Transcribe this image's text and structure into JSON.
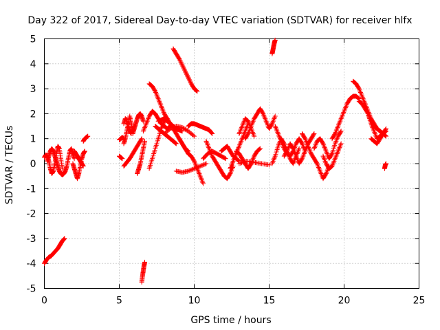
{
  "chart_data": {
    "type": "scatter",
    "title": "Day 322 of 2017, Sidereal Day-to-day VTEC variation (SDTVAR) for receiver hlfx",
    "xlabel": "GPS time / hours",
    "ylabel": "SDTVAR / TECUs",
    "xlim": [
      0,
      25
    ],
    "ylim": [
      -5,
      5
    ],
    "xticks": [
      "0",
      "5",
      "10",
      "15",
      "20",
      "25"
    ],
    "yticks": [
      "-5",
      "-4",
      "-3",
      "-2",
      "-1",
      "0",
      "1",
      "2",
      "3",
      "4",
      "5"
    ],
    "grid": true,
    "marker": "+",
    "color": "#ff0000",
    "segments": [
      {
        "x": [
          0.0,
          0.15,
          0.3,
          0.45,
          0.6,
          0.75,
          0.9,
          1.05,
          1.2,
          1.35
        ],
        "y": [
          -4.0,
          -3.85,
          -3.75,
          -3.7,
          -3.6,
          -3.5,
          -3.4,
          -3.25,
          -3.1,
          -3.0
        ]
      },
      {
        "x": [
          0.0,
          0.1,
          0.2,
          0.3,
          0.4,
          0.5,
          0.6,
          0.7,
          0.8,
          0.9,
          1.0,
          1.1,
          1.2
        ],
        "y": [
          0.25,
          0.35,
          0.3,
          0.1,
          -0.2,
          -0.4,
          -0.3,
          0.0,
          0.4,
          0.7,
          0.6,
          0.2,
          -0.2
        ]
      },
      {
        "x": [
          0.2,
          0.3,
          0.4,
          0.5,
          0.6,
          0.7,
          0.8,
          0.9,
          1.0
        ],
        "y": [
          0.1,
          0.3,
          0.5,
          0.6,
          0.5,
          0.3,
          0.1,
          -0.1,
          -0.3
        ]
      },
      {
        "x": [
          1.0,
          1.1,
          1.2,
          1.3,
          1.4,
          1.5,
          1.6,
          1.7,
          1.8,
          1.9,
          2.0
        ],
        "y": [
          -0.3,
          -0.4,
          -0.45,
          -0.4,
          -0.3,
          -0.1,
          0.2,
          0.5,
          0.6,
          0.4,
          0.2
        ]
      },
      {
        "x": [
          1.9,
          2.0,
          2.1,
          2.2,
          2.3,
          2.4,
          2.5,
          2.6,
          2.7
        ],
        "y": [
          0.0,
          -0.2,
          -0.4,
          -0.6,
          -0.4,
          -0.1,
          0.2,
          0.4,
          0.5
        ]
      },
      {
        "x": [
          2.0,
          2.1,
          2.2,
          2.3,
          2.4,
          2.5,
          2.6
        ],
        "y": [
          0.5,
          0.4,
          0.3,
          0.2,
          0.1,
          0.0,
          -0.1
        ]
      },
      {
        "x": [
          2.6,
          2.7,
          2.8,
          2.9
        ],
        "y": [
          0.9,
          1.0,
          1.05,
          1.1
        ]
      },
      {
        "x": [
          5.0,
          5.1,
          5.2
        ],
        "y": [
          0.3,
          0.25,
          0.2
        ]
      },
      {
        "x": [
          5.0,
          5.1,
          5.2,
          5.3
        ],
        "y": [
          0.95,
          1.0,
          1.05,
          1.0
        ]
      },
      {
        "x": [
          5.3,
          5.4,
          5.5,
          5.6,
          5.7,
          5.8,
          5.9,
          6.0
        ],
        "y": [
          0.8,
          1.0,
          1.3,
          1.6,
          1.9,
          1.6,
          1.3,
          1.5
        ]
      },
      {
        "x": [
          5.3,
          5.4,
          5.5,
          5.6,
          5.7,
          5.8
        ],
        "y": [
          1.6,
          1.8,
          1.75,
          1.5,
          1.3,
          1.2
        ]
      },
      {
        "x": [
          5.3,
          5.5,
          5.7,
          5.9,
          6.1,
          6.3,
          6.5
        ],
        "y": [
          -0.1,
          0.05,
          0.2,
          0.4,
          0.6,
          0.8,
          1.0
        ]
      },
      {
        "x": [
          5.9,
          6.0,
          6.1,
          6.2,
          6.3,
          6.4,
          6.5,
          6.6
        ],
        "y": [
          1.2,
          1.4,
          1.6,
          1.8,
          1.95,
          2.0,
          1.9,
          1.7
        ]
      },
      {
        "x": [
          6.2,
          6.3,
          6.4,
          6.5,
          6.6,
          6.7
        ],
        "y": [
          -0.4,
          -0.2,
          0.0,
          0.3,
          0.6,
          0.9
        ]
      },
      {
        "x": [
          6.5,
          6.55,
          6.6,
          6.65,
          6.7
        ],
        "y": [
          -4.75,
          -4.5,
          -4.3,
          -4.1,
          -3.95
        ]
      },
      {
        "x": [
          6.6,
          6.8,
          7.0,
          7.2,
          7.4,
          7.6,
          7.8,
          8.0,
          8.2,
          8.4
        ],
        "y": [
          1.3,
          1.6,
          1.9,
          2.1,
          2.0,
          1.8,
          1.6,
          1.5,
          1.4,
          1.5
        ]
      },
      {
        "x": [
          7.0,
          7.2,
          7.4,
          7.6,
          7.8,
          8.0,
          8.2,
          8.4,
          8.6,
          8.8,
          9.0,
          9.2
        ],
        "y": [
          3.2,
          3.1,
          2.9,
          2.6,
          2.3,
          2.0,
          1.8,
          1.6,
          1.5,
          1.4,
          1.35,
          1.3
        ]
      },
      {
        "x": [
          7.0,
          7.2,
          7.4,
          7.6,
          7.8,
          8.0,
          8.2
        ],
        "y": [
          -0.2,
          0.2,
          0.6,
          1.0,
          1.4,
          1.7,
          1.8
        ]
      },
      {
        "x": [
          7.4,
          7.6,
          7.8,
          8.0,
          8.2,
          8.4,
          8.6,
          8.8
        ],
        "y": [
          1.5,
          1.4,
          1.3,
          1.2,
          1.1,
          1.0,
          0.9,
          0.8
        ]
      },
      {
        "x": [
          7.6,
          7.8,
          8.0,
          8.2,
          8.4,
          8.6,
          8.8,
          9.0
        ],
        "y": [
          1.7,
          1.75,
          1.8,
          1.7,
          1.6,
          1.5,
          1.4,
          1.35
        ]
      },
      {
        "x": [
          8.6,
          8.8,
          9.0,
          9.2,
          9.4,
          9.6,
          9.8,
          10.0,
          10.2
        ],
        "y": [
          4.6,
          4.4,
          4.2,
          3.95,
          3.7,
          3.45,
          3.2,
          3.0,
          2.9
        ]
      },
      {
        "x": [
          8.6,
          8.8,
          9.0,
          9.2,
          9.4,
          9.6
        ],
        "y": [
          1.4,
          1.2,
          1.0,
          0.8,
          0.6,
          0.5
        ]
      },
      {
        "x": [
          8.0,
          8.4,
          8.8,
          9.2,
          9.6,
          10.0
        ],
        "y": [
          1.2,
          1.4,
          1.5,
          1.45,
          1.3,
          1.1
        ]
      },
      {
        "x": [
          9.0,
          9.2,
          9.4,
          9.6,
          9.8,
          10.0,
          10.2,
          10.4,
          10.6
        ],
        "y": [
          1.0,
          0.8,
          0.6,
          0.4,
          0.3,
          0.1,
          -0.2,
          -0.5,
          -0.8
        ]
      },
      {
        "x": [
          8.8,
          9.2,
          9.6,
          10.0,
          10.4,
          10.8
        ],
        "y": [
          -0.3,
          -0.35,
          -0.3,
          -0.2,
          -0.1,
          0.0
        ]
      },
      {
        "x": [
          9.6,
          9.8,
          10.0,
          10.2,
          10.4,
          10.6,
          10.8,
          11.0,
          11.2
        ],
        "y": [
          1.5,
          1.6,
          1.6,
          1.55,
          1.5,
          1.45,
          1.4,
          1.35,
          1.2
        ]
      },
      {
        "x": [
          10.8,
          11.0,
          11.2,
          11.4,
          11.6,
          11.8,
          12.0,
          12.2,
          12.4,
          12.6
        ],
        "y": [
          0.9,
          0.6,
          0.3,
          0.1,
          -0.1,
          -0.3,
          -0.5,
          -0.6,
          -0.4,
          -0.1
        ]
      },
      {
        "x": [
          10.6,
          10.9,
          11.2,
          11.5,
          11.8,
          12.1
        ],
        "y": [
          0.2,
          0.4,
          0.5,
          0.4,
          0.3,
          0.2
        ]
      },
      {
        "x": [
          11.8,
          12.0,
          12.2,
          12.4,
          12.6,
          12.8,
          13.0
        ],
        "y": [
          0.5,
          0.6,
          0.7,
          0.5,
          0.3,
          0.2,
          0.1
        ]
      },
      {
        "x": [
          12.4,
          12.6,
          12.8,
          13.0,
          13.2,
          13.4,
          13.6
        ],
        "y": [
          -0.2,
          0.1,
          0.4,
          0.7,
          1.0,
          1.3,
          1.6
        ]
      },
      {
        "x": [
          12.8,
          13.0,
          13.2,
          13.4,
          13.6,
          13.8,
          14.0,
          14.2,
          14.4
        ],
        "y": [
          0.5,
          0.4,
          0.2,
          0.0,
          -0.2,
          0.0,
          0.3,
          0.5,
          0.6
        ]
      },
      {
        "x": [
          13.0,
          13.2,
          13.4,
          13.6,
          13.8,
          14.0
        ],
        "y": [
          1.2,
          1.5,
          1.8,
          1.7,
          1.4,
          1.1
        ]
      },
      {
        "x": [
          13.4,
          13.6,
          13.8,
          14.0,
          14.2,
          14.4,
          14.6,
          14.8,
          15.0,
          15.2,
          15.4
        ],
        "y": [
          1.0,
          1.2,
          1.5,
          1.8,
          2.0,
          2.2,
          2.0,
          1.7,
          1.4,
          1.6,
          1.9
        ]
      },
      {
        "x": [
          13.0,
          13.5,
          14.0,
          14.5,
          15.0
        ],
        "y": [
          0.0,
          0.1,
          0.05,
          0.0,
          -0.05
        ]
      },
      {
        "x": [
          15.2,
          15.25,
          15.3,
          15.35,
          15.4
        ],
        "y": [
          4.4,
          4.55,
          4.7,
          4.85,
          4.95
        ]
      },
      {
        "x": [
          15.2,
          15.4,
          15.6,
          15.8,
          16.0,
          16.2,
          16.4,
          16.6,
          16.8,
          17.0
        ],
        "y": [
          0.0,
          0.3,
          0.7,
          1.0,
          0.8,
          0.5,
          0.2,
          0.0,
          0.3,
          0.6
        ]
      },
      {
        "x": [
          15.4,
          15.6,
          15.8,
          16.0,
          16.2,
          16.4,
          16.6,
          16.8,
          17.0,
          17.2,
          17.4
        ],
        "y": [
          1.5,
          1.2,
          0.9,
          0.6,
          0.4,
          0.3,
          0.5,
          0.8,
          1.0,
          0.8,
          0.5
        ]
      },
      {
        "x": [
          16.0,
          16.2,
          16.4,
          16.6,
          16.8,
          17.0,
          17.2,
          17.4,
          17.6,
          17.8,
          18.0
        ],
        "y": [
          0.3,
          0.5,
          0.8,
          0.6,
          0.3,
          0.0,
          0.2,
          0.5,
          0.8,
          1.0,
          1.2
        ]
      },
      {
        "x": [
          17.2,
          17.4,
          17.6,
          17.8,
          18.0,
          18.2,
          18.4,
          18.6,
          18.8,
          19.0
        ],
        "y": [
          1.2,
          1.0,
          0.7,
          0.4,
          0.2,
          0.0,
          -0.3,
          -0.6,
          -0.4,
          -0.1
        ]
      },
      {
        "x": [
          18.0,
          18.2,
          18.4,
          18.6,
          18.8,
          19.0,
          19.2,
          19.4,
          19.6,
          19.8
        ],
        "y": [
          0.6,
          0.9,
          1.0,
          0.8,
          0.5,
          0.2,
          0.4,
          0.8,
          1.1,
          1.3
        ]
      },
      {
        "x": [
          18.6,
          18.8,
          19.0,
          19.2,
          19.4,
          19.6,
          19.8
        ],
        "y": [
          0.3,
          0.0,
          -0.2,
          -0.1,
          0.2,
          0.5,
          0.8
        ]
      },
      {
        "x": [
          19.2,
          19.4,
          19.6,
          19.8,
          20.0,
          20.2,
          20.4,
          20.6,
          20.8,
          21.0
        ],
        "y": [
          1.0,
          1.2,
          1.5,
          1.8,
          2.1,
          2.4,
          2.6,
          2.7,
          2.7,
          2.6
        ]
      },
      {
        "x": [
          20.6,
          20.8,
          21.0,
          21.2,
          21.4,
          21.6,
          21.8,
          22.0,
          22.2,
          22.4,
          22.6
        ],
        "y": [
          3.3,
          3.2,
          3.0,
          2.7,
          2.4,
          2.1,
          1.8,
          1.6,
          1.4,
          1.3,
          1.2
        ]
      },
      {
        "x": [
          21.0,
          21.2,
          21.4,
          21.6,
          21.8,
          22.0,
          22.2,
          22.4,
          22.6,
          22.8
        ],
        "y": [
          2.5,
          2.4,
          2.2,
          2.0,
          1.7,
          1.5,
          1.4,
          1.3,
          1.2,
          1.1
        ]
      },
      {
        "x": [
          21.6,
          21.8,
          22.0,
          22.2,
          22.4,
          22.6,
          22.8
        ],
        "y": [
          2.0,
          1.6,
          1.3,
          1.0,
          1.1,
          1.2,
          1.3
        ]
      },
      {
        "x": [
          21.8,
          22.0,
          22.2,
          22.4,
          22.6,
          22.8
        ],
        "y": [
          1.0,
          0.9,
          0.8,
          1.0,
          1.2,
          1.4
        ]
      },
      {
        "x": [
          22.7,
          22.75,
          22.8
        ],
        "y": [
          -0.2,
          -0.05,
          0.0
        ]
      }
    ]
  }
}
